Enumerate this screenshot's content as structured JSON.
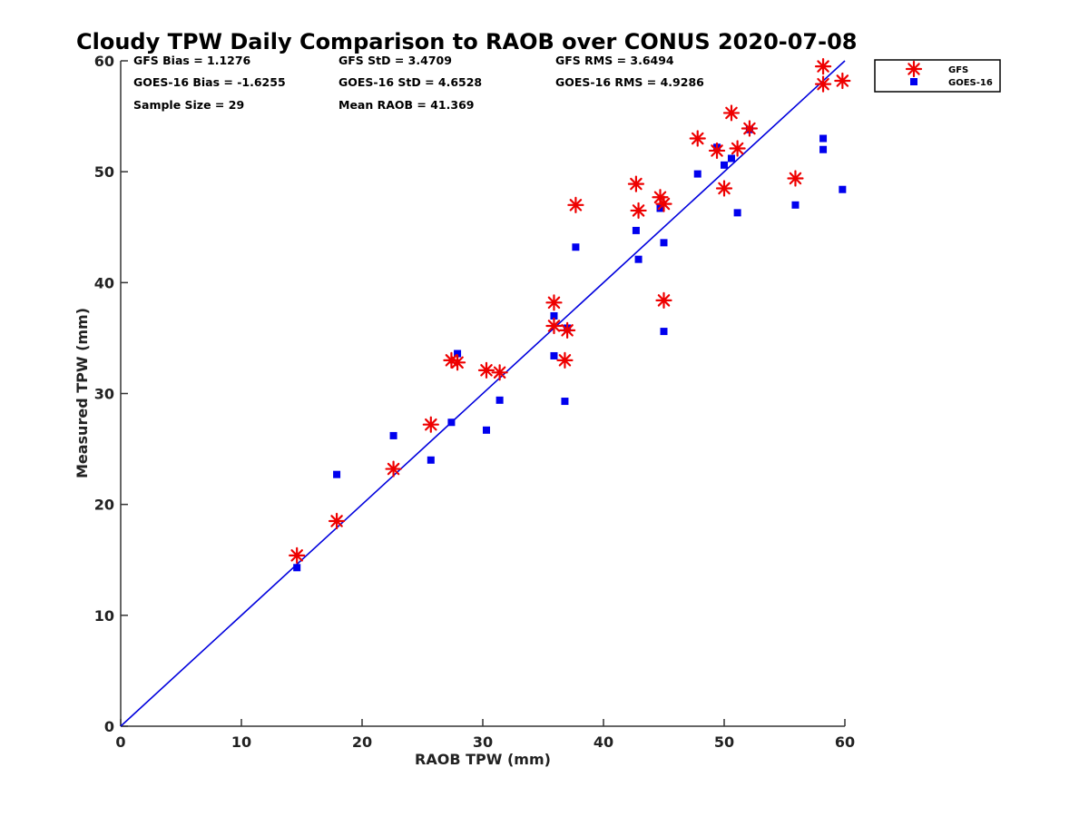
{
  "chart_data": {
    "type": "scatter",
    "title": "Cloudy TPW Daily Comparison to RAOB over CONUS 2020-07-08",
    "xlabel": "RAOB TPW (mm)",
    "ylabel": "Measured TPW (mm)",
    "xlim": [
      0,
      60
    ],
    "ylim": [
      0,
      60
    ],
    "xticks": [
      0,
      10,
      20,
      30,
      40,
      50,
      60
    ],
    "yticks": [
      0,
      10,
      20,
      30,
      40,
      50,
      60
    ],
    "grid": false,
    "legend_position": "outside-top-right",
    "reference_line": {
      "x": [
        0,
        60
      ],
      "y": [
        0,
        60
      ],
      "color": "#0000dd"
    },
    "stats": [
      "GFS Bias = 1.1276",
      "GFS StD = 3.4709",
      "GFS RMS = 3.6494",
      "GOES-16 Bias = -1.6255",
      "GOES-16 StD = 4.6528",
      "GOES-16 RMS = 4.9286",
      "Sample Size = 29",
      "Mean RAOB = 41.369"
    ],
    "series": [
      {
        "name": "GFS",
        "marker": "asterisk",
        "color": "#ee0000",
        "points": [
          [
            14.6,
            15.4
          ],
          [
            17.9,
            18.5
          ],
          [
            22.6,
            23.2
          ],
          [
            25.7,
            27.2
          ],
          [
            27.4,
            33.0
          ],
          [
            27.9,
            32.8
          ],
          [
            30.3,
            32.1
          ],
          [
            31.4,
            31.9
          ],
          [
            35.9,
            38.2
          ],
          [
            35.9,
            36.1
          ],
          [
            36.8,
            33.0
          ],
          [
            37.0,
            35.7
          ],
          [
            37.7,
            47.0
          ],
          [
            42.7,
            48.9
          ],
          [
            42.9,
            46.5
          ],
          [
            44.7,
            47.7
          ],
          [
            45.0,
            47.1
          ],
          [
            45.0,
            38.4
          ],
          [
            47.8,
            53.0
          ],
          [
            49.4,
            51.9
          ],
          [
            50.0,
            48.5
          ],
          [
            50.6,
            55.3
          ],
          [
            51.1,
            52.1
          ],
          [
            52.1,
            53.9
          ],
          [
            55.9,
            49.4
          ],
          [
            58.2,
            59.5
          ],
          [
            58.2,
            57.9
          ],
          [
            59.8,
            58.2
          ]
        ]
      },
      {
        "name": "GOES-16",
        "marker": "square",
        "color": "#0000ee",
        "points": [
          [
            14.6,
            14.3
          ],
          [
            17.9,
            22.7
          ],
          [
            22.6,
            26.2
          ],
          [
            25.7,
            24.0
          ],
          [
            27.4,
            27.4
          ],
          [
            27.9,
            33.6
          ],
          [
            30.3,
            26.7
          ],
          [
            31.4,
            29.4
          ],
          [
            35.9,
            37.0
          ],
          [
            35.9,
            33.4
          ],
          [
            36.8,
            29.3
          ],
          [
            37.0,
            35.9
          ],
          [
            37.7,
            43.2
          ],
          [
            42.7,
            44.7
          ],
          [
            42.9,
            42.1
          ],
          [
            44.7,
            46.7
          ],
          [
            45.0,
            43.6
          ],
          [
            45.0,
            35.6
          ],
          [
            47.8,
            49.8
          ],
          [
            49.4,
            52.2
          ],
          [
            50.0,
            50.6
          ],
          [
            50.6,
            51.2
          ],
          [
            51.1,
            46.3
          ],
          [
            52.1,
            53.8
          ],
          [
            55.9,
            47.0
          ],
          [
            58.2,
            53.0
          ],
          [
            58.2,
            52.0
          ],
          [
            59.8,
            48.4
          ]
        ]
      }
    ]
  }
}
